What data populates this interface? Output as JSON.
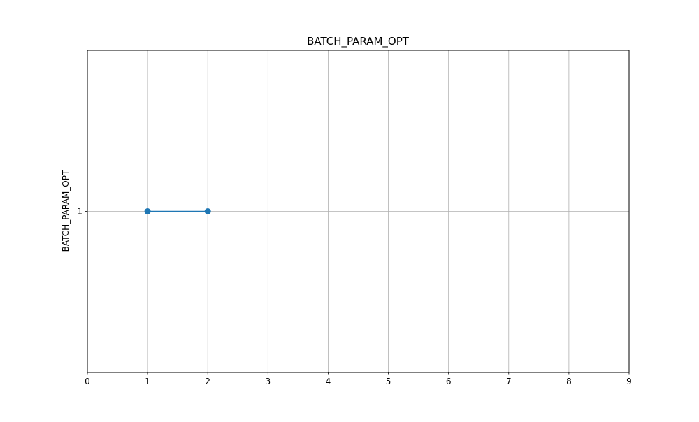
{
  "chart_data": {
    "type": "line",
    "title": "BATCH_PARAM_OPT",
    "xlabel": "",
    "ylabel": "BATCH_PARAM_OPT",
    "xlim": [
      0,
      9
    ],
    "ylim": [
      0,
      2
    ],
    "x_ticks": [
      "0",
      "1",
      "2",
      "3",
      "4",
      "5",
      "6",
      "7",
      "8",
      "9"
    ],
    "y_ticks": [
      "1"
    ],
    "grid": true,
    "legend": "none",
    "series": [
      {
        "color": "#1f77b4",
        "marker": "circle",
        "points": [
          {
            "x": 1,
            "y": 1
          },
          {
            "x": 2,
            "y": 1
          }
        ]
      }
    ]
  }
}
